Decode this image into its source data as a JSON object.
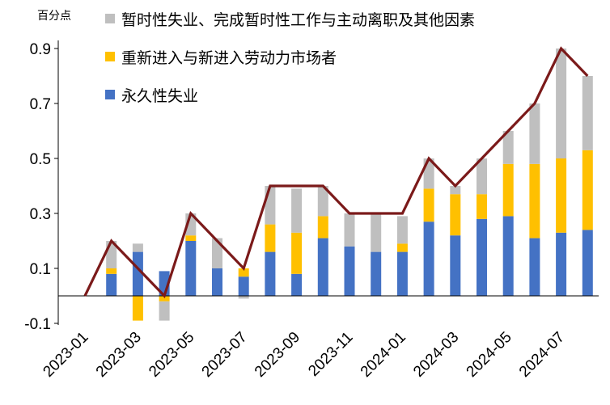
{
  "chart_data": {
    "type": "bar",
    "unit_label": "百分点",
    "categories": [
      "2023-01",
      "2023-02",
      "2023-03",
      "2023-04",
      "2023-05",
      "2023-06",
      "2023-07",
      "2023-08",
      "2023-09",
      "2023-10",
      "2023-11",
      "2023-12",
      "2024-01",
      "2024-02",
      "2024-03",
      "2024-04",
      "2024-05",
      "2024-06",
      "2024-07",
      "2024-08"
    ],
    "x_tick_labels": [
      "2023-01",
      "2023-03",
      "2023-05",
      "2023-07",
      "2023-09",
      "2023-11",
      "2024-01",
      "2024-03",
      "2024-05",
      "2024-07"
    ],
    "y_ticks": [
      -0.1,
      0.1,
      0.3,
      0.5,
      0.7,
      0.9
    ],
    "y_tick_labels": [
      "-0.1",
      "0.1",
      "0.3",
      "0.5",
      "0.7",
      "0.9"
    ],
    "ylim": [
      -0.1,
      0.92
    ],
    "stacked": true,
    "series": [
      {
        "name": "永久性失业",
        "color": "#4472C4",
        "values": [
          null,
          0.08,
          0.16,
          0.09,
          0.2,
          0.1,
          0.07,
          0.16,
          0.08,
          0.21,
          0.18,
          0.16,
          0.16,
          0.27,
          0.22,
          0.28,
          0.29,
          0.21,
          0.23,
          0.24
        ]
      },
      {
        "name": "重新进入与新进入劳动力市场者",
        "color": "#FFC000",
        "values": [
          null,
          0.02,
          -0.09,
          -0.02,
          0.02,
          0.0,
          0.03,
          0.1,
          0.15,
          0.08,
          0.0,
          0.0,
          0.03,
          0.12,
          0.15,
          0.09,
          0.19,
          0.27,
          0.27,
          0.29
        ]
      },
      {
        "name": "暂时性失业、完成暂时性工作与主动离职及其他因素",
        "color": "#BFBFBF",
        "values": [
          null,
          0.1,
          0.03,
          -0.07,
          0.08,
          0.11,
          -0.01,
          0.14,
          0.16,
          0.11,
          0.12,
          0.14,
          0.1,
          0.11,
          0.03,
          0.13,
          0.12,
          0.22,
          0.4,
          0.27
        ]
      }
    ],
    "total_line": {
      "color": "#7B1A1A",
      "values": [
        0.0,
        0.2,
        0.1,
        0.0,
        0.3,
        0.2,
        0.1,
        0.4,
        0.4,
        0.4,
        0.3,
        0.3,
        0.3,
        0.5,
        0.4,
        0.5,
        0.6,
        0.7,
        0.9,
        0.8
      ]
    },
    "legend_order": [
      "暂时性失业、完成暂时性工作与主动离职及其他因素",
      "重新进入与新进入劳动力市场者",
      "永久性失业"
    ],
    "legend_position": "top-left",
    "grid": false
  }
}
